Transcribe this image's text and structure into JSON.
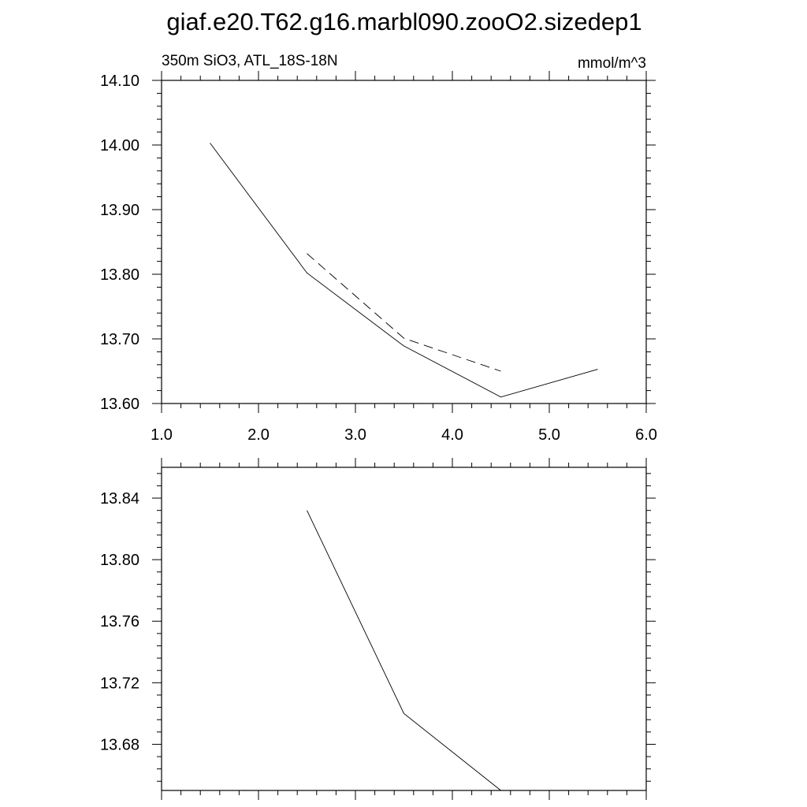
{
  "figure": {
    "title": "giaf.e20.T62.g16.marbl090.zooO2.sizedep1"
  },
  "chart_data": [
    {
      "type": "line",
      "left_label": "350m SiO3, ATL_18S-18N",
      "right_label": "mmol/m^3",
      "xlim": [
        1.0,
        6.0
      ],
      "ylim": [
        13.6,
        14.1
      ],
      "x_ticks": [
        1.0,
        2.0,
        3.0,
        4.0,
        5.0,
        6.0
      ],
      "x_tick_labels": [
        "1.0",
        "2.0",
        "3.0",
        "4.0",
        "5.0",
        "6.0"
      ],
      "y_ticks": [
        13.6,
        13.7,
        13.8,
        13.9,
        14.0,
        14.1
      ],
      "y_tick_labels": [
        "13.60",
        "13.70",
        "13.80",
        "13.90",
        "14.00",
        "14.10"
      ],
      "grid": false,
      "series": [
        {
          "style": "solid",
          "x": [
            1.5,
            2.5,
            3.5,
            4.5,
            5.5
          ],
          "y": [
            14.003,
            13.802,
            13.689,
            13.61,
            13.653
          ]
        },
        {
          "style": "dashed",
          "x": [
            2.5,
            3.5,
            4.5
          ],
          "y": [
            13.832,
            13.701,
            13.65
          ]
        }
      ]
    },
    {
      "type": "line",
      "xlim": [
        1.0,
        6.0
      ],
      "ylim": [
        13.65,
        13.86
      ],
      "x_ticks": [
        1.0,
        2.0,
        3.0,
        4.0,
        5.0,
        6.0
      ],
      "x_tick_labels": [],
      "y_ticks": [
        13.68,
        13.72,
        13.76,
        13.8,
        13.84
      ],
      "y_tick_labels": [
        "13.68",
        "13.72",
        "13.76",
        "13.80",
        "13.84"
      ],
      "grid": false,
      "series": [
        {
          "style": "solid",
          "x": [
            2.5,
            3.5,
            4.5
          ],
          "y": [
            13.832,
            13.7,
            13.65
          ]
        }
      ]
    }
  ]
}
